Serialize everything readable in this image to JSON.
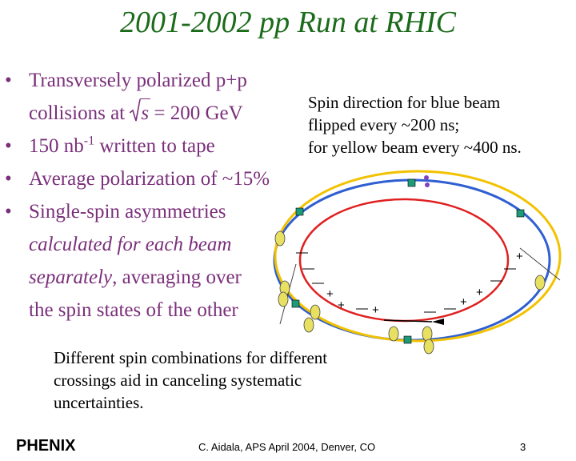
{
  "title": "2001-2002 pp Run at RHIC",
  "bullets": {
    "b1_line1": "Transversely polarized p+p",
    "b1_line2_pre": "collisions at ",
    "b1_sqrt_var": "s",
    "b1_line2_post": " = 200 GeV",
    "b2_pre": "150 nb",
    "b2_sup": "-1",
    "b2_post": " written to tape",
    "b3": "Average polarization of ~15%",
    "b4_line1": "Single-spin asymmetries",
    "b4_line2": "calculated for each beam",
    "b4_line3_italic": "separately",
    "b4_line3_rest": ", averaging over",
    "b4_line4": "the spin states of the other"
  },
  "spin_note": {
    "line1": "Spin direction for blue beam",
    "line2": "flipped every ~200 ns;",
    "line3": "for yellow beam every ~400 ns."
  },
  "crossings_note": {
    "line1": "Different spin combinations for different",
    "line2": "crossings aid in canceling systematic",
    "line3": "uncertainties."
  },
  "logo_text": "PHENIX",
  "footer": "C. Aidala, APS April 2004, Denver, CO",
  "page_number": "3",
  "colors": {
    "title": "#1b6b1b",
    "bullet_text": "#7a2f7a",
    "blue_ring": "#2f5fd0",
    "yellow_ring": "#f2c200",
    "red_ring": "#e02020",
    "magnet": "#1d9a7a"
  }
}
